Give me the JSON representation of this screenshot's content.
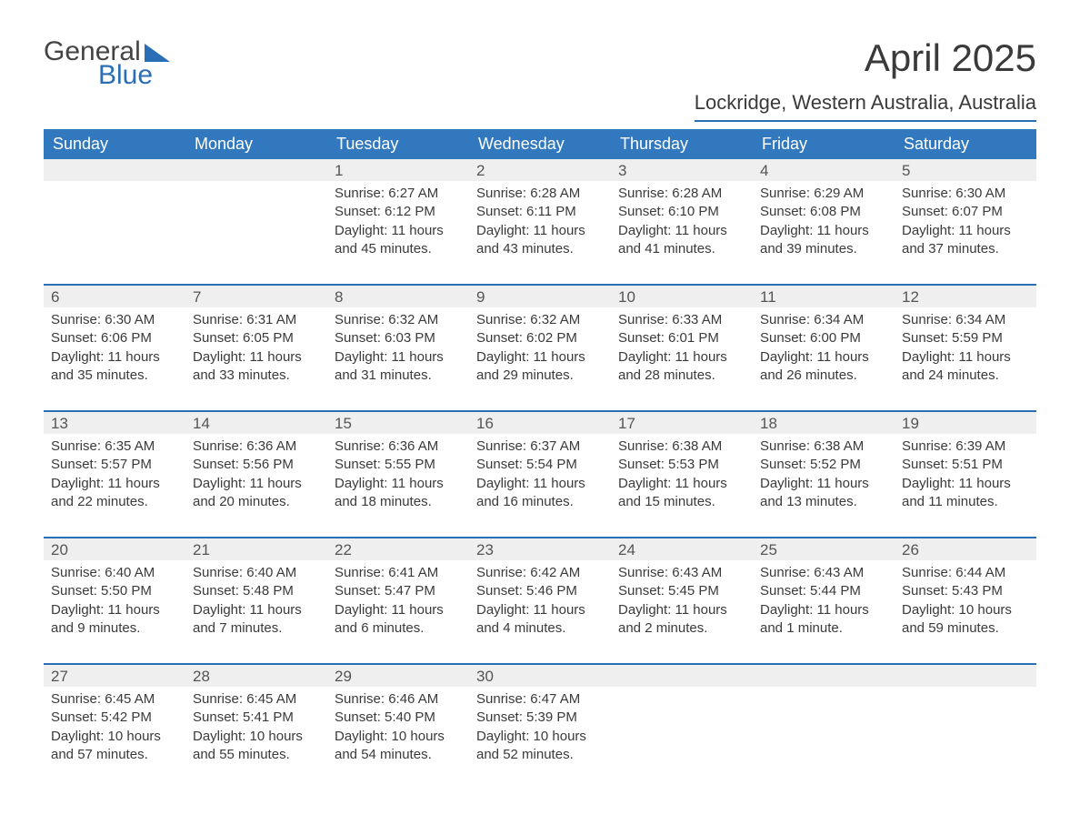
{
  "logo": {
    "word1": "General",
    "word2": "Blue"
  },
  "title": "April 2025",
  "location": "Lockridge, Western Australia, Australia",
  "day_headers": [
    "Sunday",
    "Monday",
    "Tuesday",
    "Wednesday",
    "Thursday",
    "Friday",
    "Saturday"
  ],
  "colors": {
    "header_bg": "#3178bf",
    "header_fg": "#ffffff",
    "accent_line": "#2a6fb5",
    "daynum_bg": "#efefef",
    "text": "#3a3a3a",
    "logo_blue": "#2a6fb5",
    "logo_gray": "#444444",
    "page_bg": "#ffffff"
  },
  "weeks": [
    [
      {
        "day": "",
        "lines": []
      },
      {
        "day": "",
        "lines": []
      },
      {
        "day": "1",
        "lines": [
          "Sunrise: 6:27 AM",
          "Sunset: 6:12 PM",
          "Daylight: 11 hours and 45 minutes."
        ]
      },
      {
        "day": "2",
        "lines": [
          "Sunrise: 6:28 AM",
          "Sunset: 6:11 PM",
          "Daylight: 11 hours and 43 minutes."
        ]
      },
      {
        "day": "3",
        "lines": [
          "Sunrise: 6:28 AM",
          "Sunset: 6:10 PM",
          "Daylight: 11 hours and 41 minutes."
        ]
      },
      {
        "day": "4",
        "lines": [
          "Sunrise: 6:29 AM",
          "Sunset: 6:08 PM",
          "Daylight: 11 hours and 39 minutes."
        ]
      },
      {
        "day": "5",
        "lines": [
          "Sunrise: 6:30 AM",
          "Sunset: 6:07 PM",
          "Daylight: 11 hours and 37 minutes."
        ]
      }
    ],
    [
      {
        "day": "6",
        "lines": [
          "Sunrise: 6:30 AM",
          "Sunset: 6:06 PM",
          "Daylight: 11 hours and 35 minutes."
        ]
      },
      {
        "day": "7",
        "lines": [
          "Sunrise: 6:31 AM",
          "Sunset: 6:05 PM",
          "Daylight: 11 hours and 33 minutes."
        ]
      },
      {
        "day": "8",
        "lines": [
          "Sunrise: 6:32 AM",
          "Sunset: 6:03 PM",
          "Daylight: 11 hours and 31 minutes."
        ]
      },
      {
        "day": "9",
        "lines": [
          "Sunrise: 6:32 AM",
          "Sunset: 6:02 PM",
          "Daylight: 11 hours and 29 minutes."
        ]
      },
      {
        "day": "10",
        "lines": [
          "Sunrise: 6:33 AM",
          "Sunset: 6:01 PM",
          "Daylight: 11 hours and 28 minutes."
        ]
      },
      {
        "day": "11",
        "lines": [
          "Sunrise: 6:34 AM",
          "Sunset: 6:00 PM",
          "Daylight: 11 hours and 26 minutes."
        ]
      },
      {
        "day": "12",
        "lines": [
          "Sunrise: 6:34 AM",
          "Sunset: 5:59 PM",
          "Daylight: 11 hours and 24 minutes."
        ]
      }
    ],
    [
      {
        "day": "13",
        "lines": [
          "Sunrise: 6:35 AM",
          "Sunset: 5:57 PM",
          "Daylight: 11 hours and 22 minutes."
        ]
      },
      {
        "day": "14",
        "lines": [
          "Sunrise: 6:36 AM",
          "Sunset: 5:56 PM",
          "Daylight: 11 hours and 20 minutes."
        ]
      },
      {
        "day": "15",
        "lines": [
          "Sunrise: 6:36 AM",
          "Sunset: 5:55 PM",
          "Daylight: 11 hours and 18 minutes."
        ]
      },
      {
        "day": "16",
        "lines": [
          "Sunrise: 6:37 AM",
          "Sunset: 5:54 PM",
          "Daylight: 11 hours and 16 minutes."
        ]
      },
      {
        "day": "17",
        "lines": [
          "Sunrise: 6:38 AM",
          "Sunset: 5:53 PM",
          "Daylight: 11 hours and 15 minutes."
        ]
      },
      {
        "day": "18",
        "lines": [
          "Sunrise: 6:38 AM",
          "Sunset: 5:52 PM",
          "Daylight: 11 hours and 13 minutes."
        ]
      },
      {
        "day": "19",
        "lines": [
          "Sunrise: 6:39 AM",
          "Sunset: 5:51 PM",
          "Daylight: 11 hours and 11 minutes."
        ]
      }
    ],
    [
      {
        "day": "20",
        "lines": [
          "Sunrise: 6:40 AM",
          "Sunset: 5:50 PM",
          "Daylight: 11 hours and 9 minutes."
        ]
      },
      {
        "day": "21",
        "lines": [
          "Sunrise: 6:40 AM",
          "Sunset: 5:48 PM",
          "Daylight: 11 hours and 7 minutes."
        ]
      },
      {
        "day": "22",
        "lines": [
          "Sunrise: 6:41 AM",
          "Sunset: 5:47 PM",
          "Daylight: 11 hours and 6 minutes."
        ]
      },
      {
        "day": "23",
        "lines": [
          "Sunrise: 6:42 AM",
          "Sunset: 5:46 PM",
          "Daylight: 11 hours and 4 minutes."
        ]
      },
      {
        "day": "24",
        "lines": [
          "Sunrise: 6:43 AM",
          "Sunset: 5:45 PM",
          "Daylight: 11 hours and 2 minutes."
        ]
      },
      {
        "day": "25",
        "lines": [
          "Sunrise: 6:43 AM",
          "Sunset: 5:44 PM",
          "Daylight: 11 hours and 1 minute."
        ]
      },
      {
        "day": "26",
        "lines": [
          "Sunrise: 6:44 AM",
          "Sunset: 5:43 PM",
          "Daylight: 10 hours and 59 minutes."
        ]
      }
    ],
    [
      {
        "day": "27",
        "lines": [
          "Sunrise: 6:45 AM",
          "Sunset: 5:42 PM",
          "Daylight: 10 hours and 57 minutes."
        ]
      },
      {
        "day": "28",
        "lines": [
          "Sunrise: 6:45 AM",
          "Sunset: 5:41 PM",
          "Daylight: 10 hours and 55 minutes."
        ]
      },
      {
        "day": "29",
        "lines": [
          "Sunrise: 6:46 AM",
          "Sunset: 5:40 PM",
          "Daylight: 10 hours and 54 minutes."
        ]
      },
      {
        "day": "30",
        "lines": [
          "Sunrise: 6:47 AM",
          "Sunset: 5:39 PM",
          "Daylight: 10 hours and 52 minutes."
        ]
      },
      {
        "day": "",
        "lines": []
      },
      {
        "day": "",
        "lines": []
      },
      {
        "day": "",
        "lines": []
      }
    ]
  ]
}
